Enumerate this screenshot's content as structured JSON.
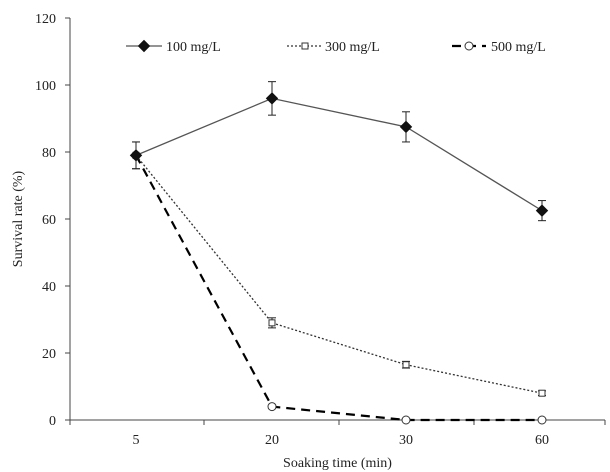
{
  "chart_data": {
    "type": "line",
    "categories": [
      "5",
      "20",
      "30",
      "60"
    ],
    "xlabel": "Soaking time (min)",
    "ylabel": "Survival rate (%)",
    "ylim": [
      0,
      120
    ],
    "yticks": [
      0,
      20,
      40,
      60,
      80,
      100,
      120
    ],
    "grid": false,
    "legend_position": "top",
    "series": [
      {
        "name": "100 mg/L",
        "values": [
          79,
          96,
          87.5,
          62.5
        ],
        "errors": [
          4,
          5,
          4.5,
          3
        ],
        "marker": "diamond-filled",
        "line_style": "solid",
        "color": "#555555"
      },
      {
        "name": "300 mg/L",
        "values": [
          79,
          29,
          16.5,
          8
        ],
        "errors": [
          4,
          1.5,
          1,
          0.7
        ],
        "marker": "square-open",
        "line_style": "dotted",
        "color": "#333333"
      },
      {
        "name": "500 mg/L",
        "values": [
          79,
          4,
          0,
          0
        ],
        "errors": [
          0,
          0,
          0,
          0
        ],
        "marker": "circle-open",
        "line_style": "dashed",
        "color": "#000000"
      }
    ]
  }
}
